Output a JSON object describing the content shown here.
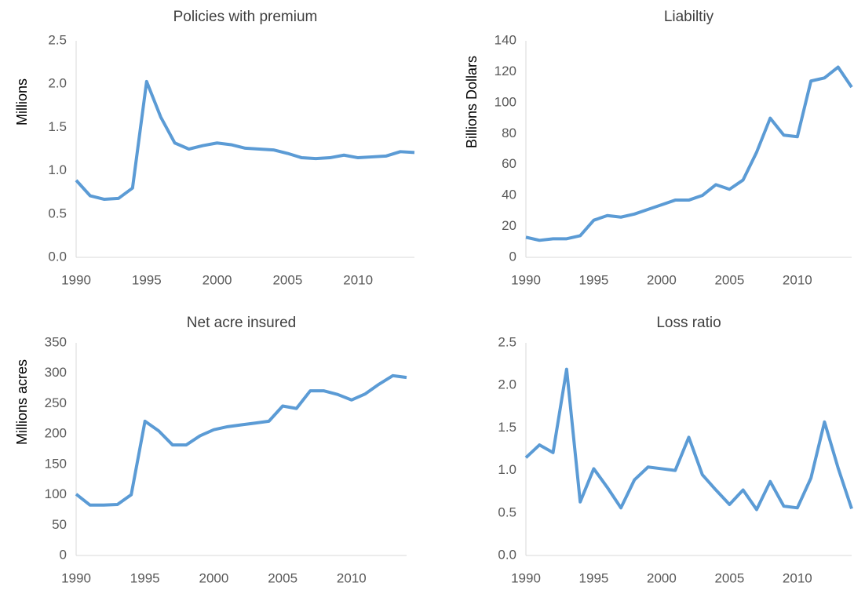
{
  "chart_data": [
    {
      "type": "line",
      "title": "Policies with premium",
      "ylabel": "Millions",
      "x": [
        1990,
        1991,
        1992,
        1993,
        1994,
        1995,
        1996,
        1997,
        1998,
        1999,
        2000,
        2001,
        2002,
        2003,
        2004,
        2005,
        2006,
        2007,
        2008,
        2009,
        2010,
        2011,
        2012,
        2013,
        2014
      ],
      "values": [
        0.89,
        0.71,
        0.67,
        0.68,
        0.8,
        2.03,
        1.62,
        1.32,
        1.25,
        1.29,
        1.32,
        1.3,
        1.26,
        1.25,
        1.24,
        1.2,
        1.15,
        1.14,
        1.15,
        1.18,
        1.15,
        1.16,
        1.17,
        1.22,
        1.21
      ],
      "color": "#5b9bd5",
      "xlim": [
        1990,
        2014
      ],
      "xticks": [
        1990,
        1995,
        2000,
        2005,
        2010
      ],
      "ylim": [
        0,
        2.5
      ],
      "yticks": [
        {
          "value": 0,
          "label": "0.0"
        },
        0.5,
        {
          "value": 1,
          "label": "1.0"
        },
        1.5,
        {
          "value": 2,
          "label": "2.0"
        },
        2.5
      ],
      "grid": false
    },
    {
      "type": "line",
      "title": "Liabiltiy",
      "ylabel": "Billions Dollars",
      "x": [
        1990,
        1991,
        1992,
        1993,
        1994,
        1995,
        1996,
        1997,
        1998,
        1999,
        2000,
        2001,
        2002,
        2003,
        2004,
        2005,
        2006,
        2007,
        2008,
        2009,
        2010,
        2011,
        2012,
        2013,
        2014
      ],
      "values": [
        13,
        11,
        12,
        12,
        14,
        24,
        27,
        26,
        28,
        31,
        34,
        37,
        37,
        40,
        47,
        44,
        50,
        68,
        90,
        79,
        78,
        114,
        116,
        123,
        110
      ],
      "color": "#5b9bd5",
      "xlim": [
        1990,
        2014
      ],
      "xticks": [
        1990,
        1995,
        2000,
        2005,
        2010
      ],
      "ylim": [
        0,
        140
      ],
      "yticks": [
        0,
        20,
        40,
        60,
        80,
        100,
        120,
        140
      ],
      "grid": false
    },
    {
      "type": "line",
      "title": "Net acre insured",
      "ylabel": "Millions acres",
      "x": [
        1990,
        1991,
        1992,
        1993,
        1994,
        1995,
        1996,
        1997,
        1998,
        1999,
        2000,
        2001,
        2002,
        2003,
        2004,
        2005,
        2006,
        2007,
        2008,
        2009,
        2010,
        2011,
        2012,
        2013,
        2014
      ],
      "values": [
        101,
        83,
        83,
        84,
        100,
        221,
        205,
        182,
        182,
        197,
        207,
        212,
        215,
        218,
        221,
        246,
        242,
        271,
        271,
        265,
        256,
        266,
        282,
        296,
        293
      ],
      "color": "#5b9bd5",
      "xlim": [
        1990,
        2014
      ],
      "xticks": [
        1990,
        1995,
        2000,
        2005,
        2010
      ],
      "ylim": [
        0,
        350
      ],
      "yticks": [
        0,
        50,
        100,
        150,
        200,
        250,
        300,
        350
      ],
      "grid": false
    },
    {
      "type": "line",
      "title": "Loss ratio",
      "x": [
        1990,
        1991,
        1992,
        1993,
        1994,
        1995,
        1996,
        1997,
        1998,
        1999,
        2000,
        2001,
        2002,
        2003,
        2004,
        2005,
        2006,
        2007,
        2008,
        2009,
        2010,
        2011,
        2012,
        2013,
        2014
      ],
      "values": [
        1.15,
        1.3,
        1.21,
        2.19,
        0.63,
        1.02,
        0.8,
        0.56,
        0.89,
        1.04,
        1.02,
        1.0,
        1.39,
        0.95,
        0.77,
        0.6,
        0.77,
        0.54,
        0.87,
        0.58,
        0.56,
        0.91,
        1.57,
        1.03,
        0.55
      ],
      "color": "#5b9bd5",
      "xlim": [
        1990,
        2014
      ],
      "xticks": [
        1990,
        1995,
        2000,
        2005,
        2010
      ],
      "ylim": [
        0,
        2.5
      ],
      "yticks": [
        {
          "value": 0,
          "label": "0.0"
        },
        0.5,
        {
          "value": 1,
          "label": "1.0"
        },
        1.5,
        {
          "value": 2,
          "label": "2.0"
        },
        2.5
      ],
      "grid": false
    }
  ]
}
